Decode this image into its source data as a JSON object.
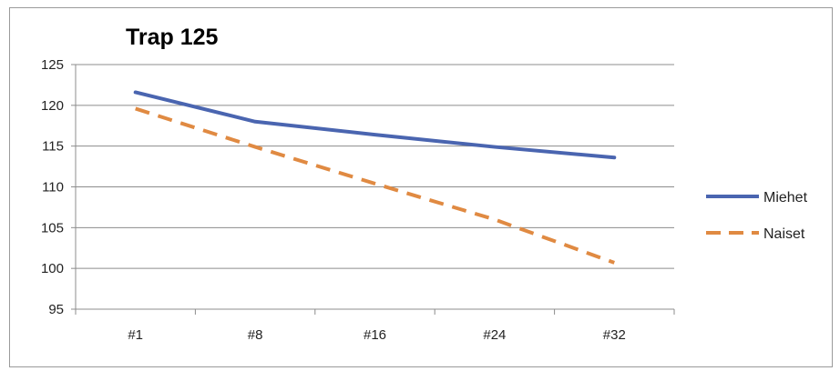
{
  "chart_data": {
    "type": "line",
    "title": "Trap 125",
    "categories": [
      "#1",
      "#8",
      "#16",
      "#24",
      "#32"
    ],
    "ylim": [
      95,
      125
    ],
    "yticks": [
      95,
      100,
      105,
      110,
      115,
      120,
      125
    ],
    "grid": "horizontal",
    "legend_position": "right",
    "series": [
      {
        "name": "Miehet",
        "values": [
          121.6,
          118.0,
          116.4,
          114.9,
          113.6
        ],
        "color": "#4a65b0",
        "style": "solid"
      },
      {
        "name": "Naiset",
        "values": [
          119.6,
          114.9,
          110.4,
          106.0,
          100.7
        ],
        "color": "#e08a42",
        "style": "dashed"
      }
    ]
  }
}
